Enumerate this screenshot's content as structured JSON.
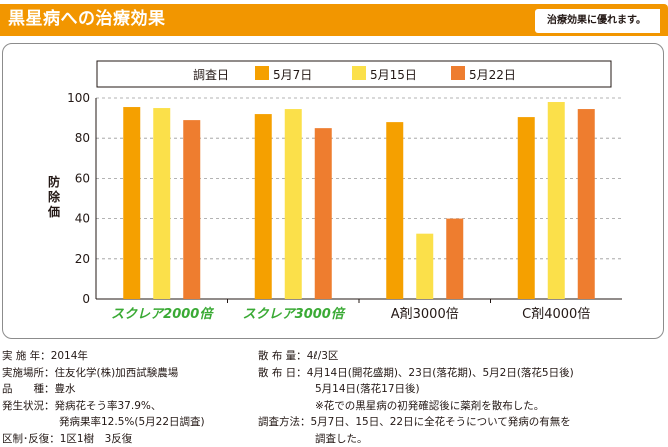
{
  "header": {
    "title": "黒星病への治療効果",
    "tag": "治療効果に優れます。"
  },
  "chart_data": {
    "type": "bar",
    "ylabel": "防除価",
    "ylim": [
      0,
      100
    ],
    "yticks": [
      0,
      20,
      40,
      60,
      80,
      100
    ],
    "grid": true,
    "legend_position": "top",
    "legend_title": "調査日",
    "categories": [
      "スクレア2000倍",
      "スクレア3000倍",
      "A剤3000倍",
      "C剤4000倍"
    ],
    "category_colors": [
      "#3aaa35",
      "#3aaa35",
      "#231815",
      "#231815"
    ],
    "series": [
      {
        "name": "5月7日",
        "color": "#f5a000",
        "values": [
          95.5,
          92,
          88,
          90.5
        ]
      },
      {
        "name": "5月15日",
        "color": "#fbe04a",
        "values": [
          95,
          94.5,
          32.5,
          98
        ]
      },
      {
        "name": "5月22日",
        "color": "#ee7d2f",
        "values": [
          89,
          85,
          40,
          94.5
        ]
      }
    ]
  },
  "notes_left": [
    {
      "label": "実 施 年：",
      "value": "2014年"
    },
    {
      "label": "実施場所：",
      "value": "住友化学(株)加西試験農場"
    },
    {
      "label": "品　　種：",
      "value": "豊水"
    },
    {
      "label": "発生状況：",
      "value": "発病花そう率37.9%、"
    },
    {
      "indent": "発病果率12.5%(5月22日調査)"
    },
    {
      "label": "区制･反復：",
      "value": "1区1樹　3反復"
    }
  ],
  "notes_right": [
    {
      "label": "散 布 量：",
      "value": "4ℓ/3区"
    },
    {
      "label": "散 布 日：",
      "value": "4月14日(開花盛期)、23日(落花期)、5月2日(落花5日後)"
    },
    {
      "indent": "5月14日(落花17日後)"
    },
    {
      "indent": "※花での黒星病の初発確認後に薬剤を散布した。"
    },
    {
      "label": "調査方法：",
      "value": "5月7日、15日、22日に全花そうについて発病の有無を"
    },
    {
      "indent": "調査した。"
    }
  ]
}
